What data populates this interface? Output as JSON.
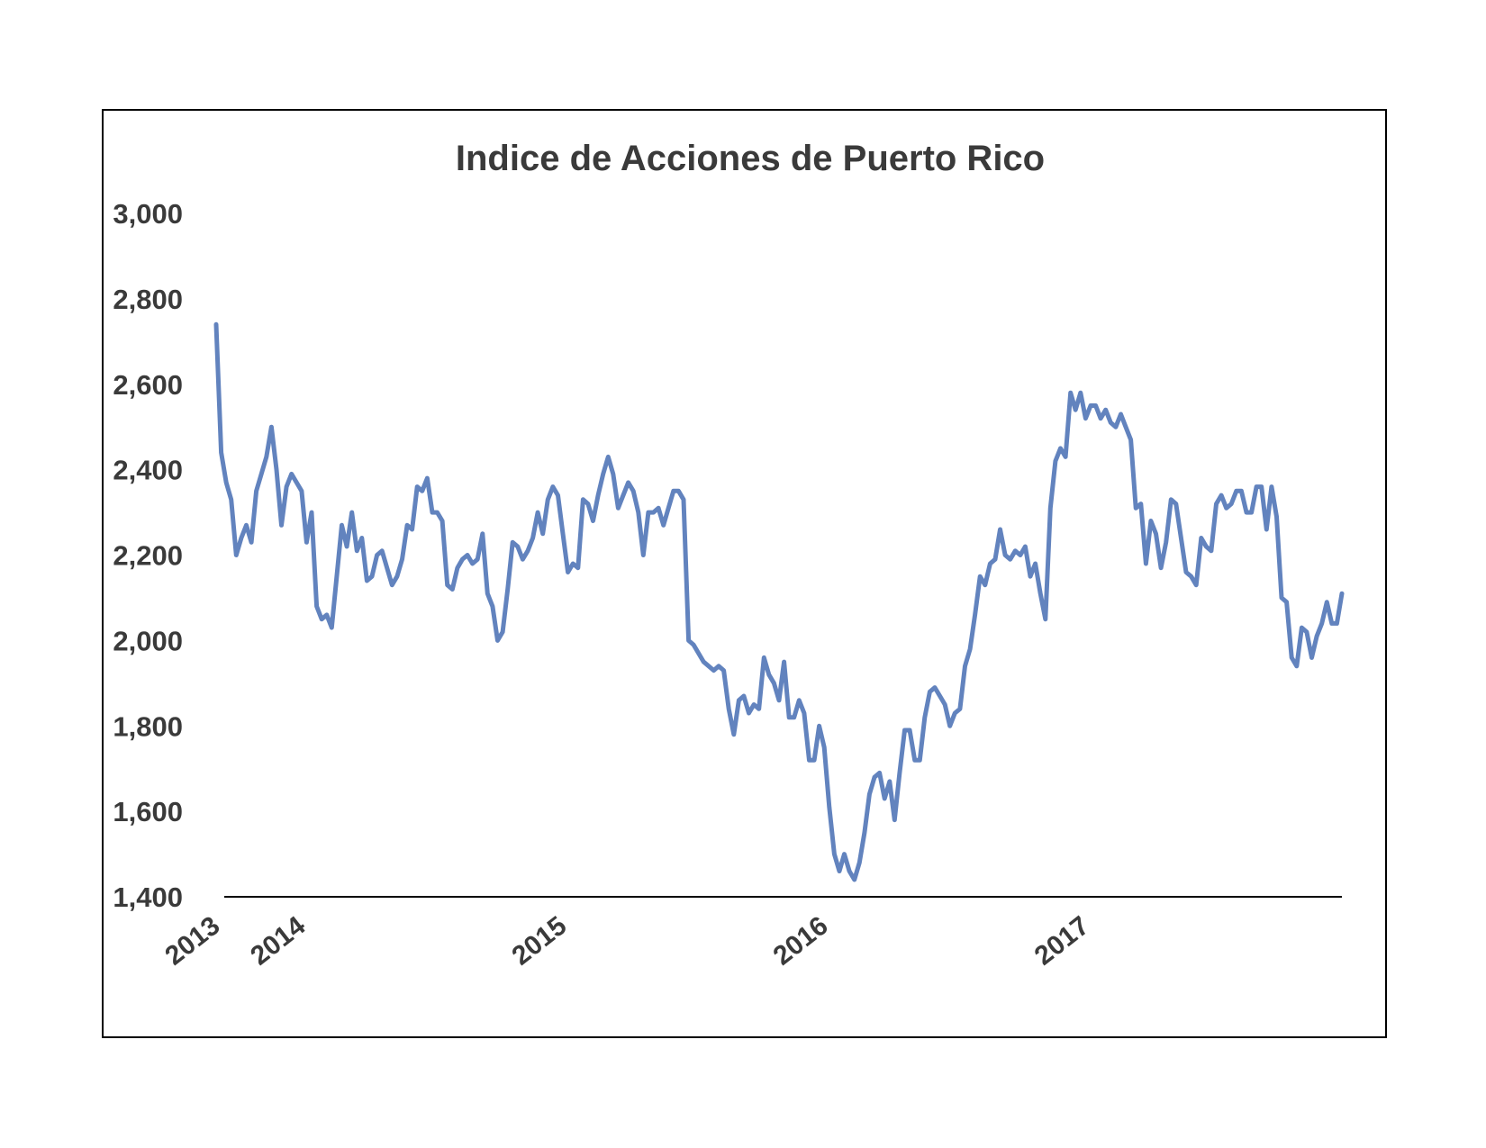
{
  "chart_data": {
    "type": "line",
    "title": "Indice de Acciones de Puerto Rico",
    "xlabel": "",
    "ylabel": "",
    "ylim": [
      1400,
      3000
    ],
    "yticks": [
      1400,
      1600,
      1800,
      2000,
      2200,
      2400,
      2600,
      2800,
      3000
    ],
    "ytick_labels": [
      "1,400",
      "1,600",
      "1,800",
      "2,000",
      "2,200",
      "2,400",
      "2,600",
      "2,800",
      "3,000"
    ],
    "xtick_labels": [
      "2013",
      "2014",
      "2015",
      "2016",
      "2017"
    ],
    "xtick_positions": [
      0,
      17,
      69,
      121,
      173
    ],
    "grid": false,
    "legend": "none",
    "series": [
      {
        "color": "#6283BE",
        "values": [
          2740,
          2440,
          2370,
          2330,
          2200,
          2240,
          2270,
          2230,
          2350,
          2390,
          2430,
          2500,
          2400,
          2270,
          2360,
          2390,
          2370,
          2350,
          2230,
          2300,
          2080,
          2050,
          2060,
          2030,
          2150,
          2270,
          2220,
          2300,
          2210,
          2240,
          2140,
          2150,
          2200,
          2210,
          2170,
          2130,
          2150,
          2190,
          2270,
          2260,
          2360,
          2350,
          2380,
          2300,
          2300,
          2280,
          2130,
          2120,
          2170,
          2190,
          2200,
          2180,
          2190,
          2250,
          2110,
          2080,
          2000,
          2020,
          2120,
          2230,
          2220,
          2190,
          2210,
          2240,
          2300,
          2250,
          2330,
          2360,
          2340,
          2250,
          2160,
          2180,
          2170,
          2330,
          2320,
          2280,
          2340,
          2390,
          2430,
          2390,
          2310,
          2340,
          2370,
          2350,
          2300,
          2200,
          2300,
          2300,
          2310,
          2270,
          2310,
          2350,
          2350,
          2330,
          2000,
          1990,
          1970,
          1950,
          1940,
          1930,
          1940,
          1930,
          1840,
          1780,
          1860,
          1870,
          1830,
          1850,
          1840,
          1960,
          1920,
          1900,
          1860,
          1950,
          1820,
          1820,
          1860,
          1830,
          1720,
          1720,
          1800,
          1750,
          1610,
          1500,
          1460,
          1500,
          1460,
          1440,
          1480,
          1550,
          1640,
          1680,
          1690,
          1630,
          1670,
          1580,
          1690,
          1790,
          1790,
          1720,
          1720,
          1820,
          1880,
          1890,
          1870,
          1850,
          1800,
          1830,
          1840,
          1940,
          1980,
          2060,
          2150,
          2130,
          2180,
          2190,
          2260,
          2200,
          2190,
          2210,
          2200,
          2220,
          2150,
          2180,
          2110,
          2050,
          2310,
          2420,
          2450,
          2430,
          2580,
          2540,
          2580,
          2520,
          2550,
          2550,
          2520,
          2540,
          2510,
          2500,
          2530,
          2500,
          2470,
          2310,
          2320,
          2180,
          2280,
          2250,
          2170,
          2230,
          2330,
          2320,
          2240,
          2160,
          2150,
          2130,
          2240,
          2220,
          2210,
          2320,
          2340,
          2310,
          2320,
          2350,
          2350,
          2300,
          2300,
          2360,
          2360,
          2260,
          2360,
          2290,
          2100,
          2090,
          1960,
          1940,
          2030,
          2020,
          1960,
          2010,
          2040,
          2090,
          2040,
          2040,
          2110
        ]
      }
    ]
  }
}
